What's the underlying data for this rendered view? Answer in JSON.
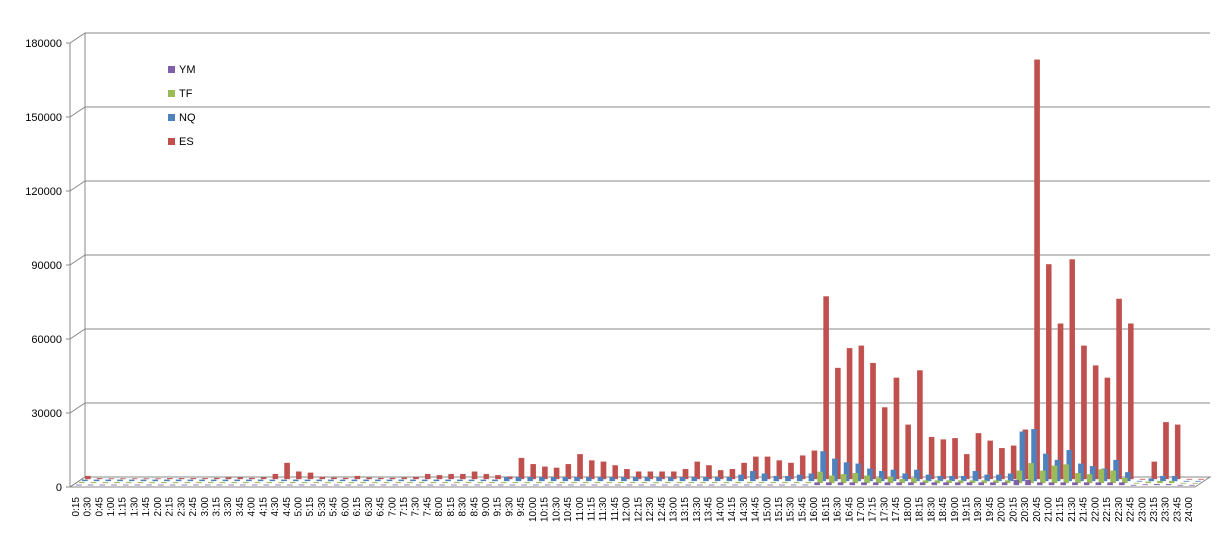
{
  "chart_data": {
    "type": "bar3d",
    "categories": [
      "0:15",
      "0:30",
      "0:45",
      "1:00",
      "1:15",
      "1:30",
      "1:45",
      "2:00",
      "2:15",
      "2:30",
      "2:45",
      "3:00",
      "3:15",
      "3:30",
      "3:45",
      "4:00",
      "4:15",
      "4:30",
      "4:45",
      "5:00",
      "5:15",
      "5:30",
      "5:45",
      "6:00",
      "6:15",
      "6:30",
      "6:45",
      "7:00",
      "7:15",
      "7:30",
      "7:45",
      "8:00",
      "8:15",
      "8:30",
      "8:45",
      "9:00",
      "9:15",
      "9:30",
      "9:45",
      "10:00",
      "10:15",
      "10:30",
      "10:45",
      "11:00",
      "11:15",
      "11:30",
      "11:45",
      "12:00",
      "12:15",
      "12:30",
      "12:45",
      "13:00",
      "13:15",
      "13:30",
      "13:45",
      "14:00",
      "14:15",
      "14:30",
      "14:45",
      "15:00",
      "15:15",
      "15:30",
      "15:45",
      "16:00",
      "16:15",
      "16:30",
      "16:45",
      "17:00",
      "17:15",
      "17:30",
      "17:45",
      "18:00",
      "18:15",
      "18:30",
      "18:45",
      "19:00",
      "19:15",
      "19:30",
      "19:45",
      "20:00",
      "20:15",
      "20:30",
      "20:45",
      "21:00",
      "21:15",
      "21:30",
      "21:45",
      "22:00",
      "22:15",
      "22:30",
      "22:45",
      "23:00",
      "23:15",
      "23:30",
      "23:45",
      "24:00"
    ],
    "series": [
      {
        "name": "YM",
        "color": "#7f5fa8",
        "values": [
          100,
          100,
          100,
          100,
          100,
          100,
          100,
          100,
          100,
          100,
          100,
          100,
          100,
          100,
          100,
          100,
          100,
          100,
          100,
          100,
          100,
          100,
          100,
          100,
          100,
          100,
          100,
          100,
          100,
          100,
          100,
          100,
          100,
          100,
          100,
          100,
          100,
          100,
          100,
          100,
          100,
          100,
          100,
          100,
          100,
          100,
          100,
          100,
          100,
          100,
          100,
          100,
          100,
          100,
          100,
          100,
          100,
          100,
          100,
          100,
          100,
          100,
          100,
          1000,
          1000,
          1000,
          1000,
          1000,
          1000,
          1000,
          1000,
          1000,
          1000,
          1000,
          1000,
          1000,
          1000,
          1000,
          1000,
          1000,
          2000,
          2000,
          1000,
          1000,
          1000,
          1000,
          1000,
          1000,
          1000,
          1000,
          0,
          200,
          300,
          300,
          0,
          0
        ]
      },
      {
        "name": "TF",
        "color": "#9bbb59",
        "values": [
          300,
          300,
          300,
          300,
          300,
          300,
          300,
          300,
          300,
          300,
          300,
          300,
          300,
          300,
          300,
          300,
          300,
          300,
          300,
          300,
          300,
          300,
          300,
          300,
          300,
          300,
          300,
          300,
          300,
          300,
          300,
          300,
          300,
          300,
          300,
          300,
          300,
          300,
          300,
          300,
          300,
          300,
          300,
          300,
          300,
          300,
          300,
          300,
          300,
          300,
          300,
          300,
          300,
          300,
          300,
          300,
          300,
          300,
          300,
          300,
          300,
          300,
          300,
          4500,
          3000,
          3500,
          4000,
          3000,
          2000,
          2500,
          1500,
          2000,
          1000,
          1000,
          1000,
          1000,
          1000,
          1000,
          1000,
          1000,
          5000,
          8000,
          5000,
          7000,
          7500,
          4000,
          3500,
          5500,
          5000,
          2000,
          0,
          500,
          800,
          800,
          0,
          0
        ]
      },
      {
        "name": "NQ",
        "color": "#4f81bd",
        "values": [
          500,
          500,
          500,
          500,
          500,
          500,
          500,
          500,
          500,
          500,
          500,
          500,
          500,
          500,
          500,
          500,
          500,
          500,
          500,
          500,
          500,
          500,
          500,
          500,
          500,
          500,
          500,
          500,
          500,
          500,
          500,
          500,
          500,
          500,
          500,
          500,
          1500,
          1500,
          1500,
          1500,
          1500,
          1500,
          1500,
          1500,
          1500,
          1500,
          1500,
          1500,
          1500,
          1500,
          1500,
          1500,
          1500,
          1500,
          1500,
          1500,
          2500,
          4000,
          3000,
          2000,
          2000,
          2500,
          3000,
          12000,
          9000,
          7500,
          7000,
          5000,
          4000,
          4500,
          3000,
          4500,
          2500,
          2000,
          2000,
          2000,
          4000,
          2500,
          2500,
          3000,
          20000,
          21000,
          11000,
          8500,
          12500,
          7000,
          6000,
          5000,
          8500,
          3500,
          0,
          1000,
          2000,
          2000,
          0,
          0
        ]
      },
      {
        "name": "ES",
        "color": "#c0504d",
        "values": [
          1200,
          300,
          200,
          200,
          200,
          200,
          200,
          300,
          300,
          300,
          300,
          400,
          600,
          600,
          400,
          600,
          2000,
          6500,
          3000,
          2500,
          800,
          500,
          400,
          1200,
          500,
          400,
          400,
          500,
          800,
          2000,
          1500,
          2000,
          2000,
          3000,
          2000,
          1500,
          1000,
          8500,
          6000,
          5000,
          4500,
          6000,
          10000,
          7500,
          7000,
          5500,
          4000,
          3000,
          3000,
          3000,
          3000,
          4000,
          7000,
          5500,
          3500,
          4000,
          6500,
          9000,
          9000,
          7500,
          6500,
          9500,
          11500,
          74000,
          45000,
          53000,
          54000,
          47000,
          29000,
          41000,
          22000,
          44000,
          17000,
          16000,
          16500,
          10000,
          18500,
          15500,
          12500,
          13500,
          20000,
          170000,
          87000,
          63000,
          89000,
          54000,
          46000,
          41000,
          73000,
          63000,
          0,
          7000,
          23000,
          22000,
          0,
          0
        ]
      }
    ],
    "ylim": [
      0,
      180000
    ],
    "yticks": [
      0,
      30000,
      60000,
      90000,
      120000,
      150000,
      180000
    ],
    "grid": true
  }
}
